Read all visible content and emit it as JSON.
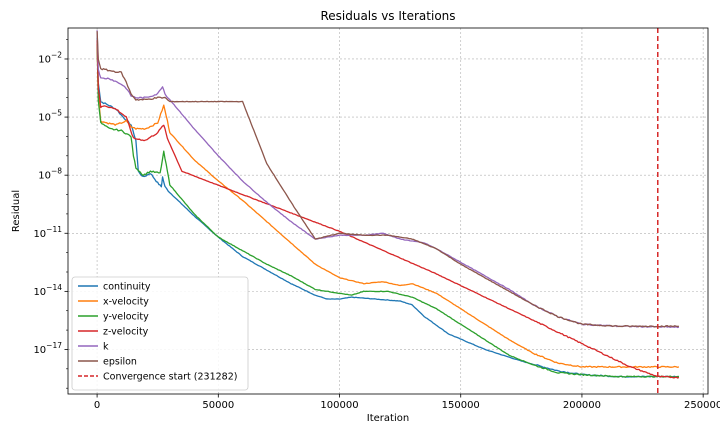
{
  "chart_data": {
    "type": "line",
    "title": "Residuals vs Iterations",
    "xlabel": "Iteration",
    "ylabel": "Residual",
    "yscale": "log",
    "xlim": [
      -12000,
      252000
    ],
    "ylim_log10": [
      -19.3,
      -0.4
    ],
    "x_ticks": [
      0,
      50000,
      100000,
      150000,
      200000,
      250000
    ],
    "x_tick_labels": [
      "0",
      "50000",
      "100000",
      "150000",
      "200000",
      "250000"
    ],
    "y_ticks_log10": [
      -17,
      -14,
      -11,
      -8,
      -5,
      -2
    ],
    "y_tick_labels": [
      {
        "base": "10",
        "exp": "−17"
      },
      {
        "base": "10",
        "exp": "−14"
      },
      {
        "base": "10",
        "exp": "−11"
      },
      {
        "base": "10",
        "exp": "−8"
      },
      {
        "base": "10",
        "exp": "−5"
      },
      {
        "base": "10",
        "exp": "−2"
      }
    ],
    "grid": true,
    "legend_position": "bottom-left",
    "series": [
      {
        "name": "continuity",
        "color": "#1f77b4",
        "log10_points": [
          [
            0,
            -0.9
          ],
          [
            500,
            -3.2
          ],
          [
            1500,
            -4.2
          ],
          [
            5000,
            -4.4
          ],
          [
            8000,
            -4.6
          ],
          [
            10000,
            -4.9
          ],
          [
            14000,
            -5.4
          ],
          [
            16000,
            -6.2
          ],
          [
            17000,
            -7.8
          ],
          [
            19000,
            -8.1
          ],
          [
            22000,
            -7.9
          ],
          [
            25000,
            -8.4
          ],
          [
            26500,
            -8.6
          ],
          [
            27000,
            -8.1
          ],
          [
            28000,
            -8.6
          ],
          [
            30000,
            -8.9
          ],
          [
            40000,
            -10.1
          ],
          [
            50000,
            -11.2
          ],
          [
            60000,
            -12.2
          ],
          [
            70000,
            -12.9
          ],
          [
            80000,
            -13.6
          ],
          [
            90000,
            -14.2
          ],
          [
            95000,
            -14.4
          ],
          [
            100000,
            -14.4
          ],
          [
            105000,
            -14.3
          ],
          [
            115000,
            -14.4
          ],
          [
            125000,
            -14.5
          ],
          [
            130000,
            -14.7
          ],
          [
            135000,
            -15.3
          ],
          [
            145000,
            -16.2
          ],
          [
            160000,
            -17.0
          ],
          [
            175000,
            -17.6
          ],
          [
            190000,
            -18.1
          ],
          [
            200000,
            -18.3
          ],
          [
            215000,
            -18.4
          ],
          [
            240000,
            -18.4
          ]
        ]
      },
      {
        "name": "x-velocity",
        "color": "#ff7f0e",
        "log10_points": [
          [
            0,
            -1.2
          ],
          [
            500,
            -3.9
          ],
          [
            1500,
            -5.2
          ],
          [
            4000,
            -5.3
          ],
          [
            8000,
            -5.4
          ],
          [
            10000,
            -5.3
          ],
          [
            12000,
            -5.2
          ],
          [
            14000,
            -5.5
          ],
          [
            16000,
            -5.6
          ],
          [
            20000,
            -5.6
          ],
          [
            25000,
            -5.3
          ],
          [
            27500,
            -4.4
          ],
          [
            29000,
            -5.2
          ],
          [
            30000,
            -5.8
          ],
          [
            40000,
            -7.2
          ],
          [
            50000,
            -8.3
          ],
          [
            60000,
            -9.3
          ],
          [
            70000,
            -10.4
          ],
          [
            80000,
            -11.5
          ],
          [
            90000,
            -12.6
          ],
          [
            100000,
            -13.3
          ],
          [
            110000,
            -13.6
          ],
          [
            118000,
            -13.5
          ],
          [
            125000,
            -13.7
          ],
          [
            130000,
            -13.6
          ],
          [
            140000,
            -14.1
          ],
          [
            150000,
            -14.9
          ],
          [
            160000,
            -15.7
          ],
          [
            170000,
            -16.5
          ],
          [
            180000,
            -17.2
          ],
          [
            190000,
            -17.7
          ],
          [
            200000,
            -17.9
          ],
          [
            215000,
            -17.9
          ],
          [
            240000,
            -17.9
          ]
        ]
      },
      {
        "name": "y-velocity",
        "color": "#2ca02c",
        "log10_points": [
          [
            0,
            -1.1
          ],
          [
            500,
            -4.1
          ],
          [
            1500,
            -5.3
          ],
          [
            5000,
            -5.6
          ],
          [
            10000,
            -5.7
          ],
          [
            14000,
            -6.0
          ],
          [
            15000,
            -7.0
          ],
          [
            16000,
            -7.6
          ],
          [
            19000,
            -8.0
          ],
          [
            22000,
            -7.8
          ],
          [
            26000,
            -7.9
          ],
          [
            27500,
            -6.8
          ],
          [
            29000,
            -7.8
          ],
          [
            30000,
            -8.5
          ],
          [
            40000,
            -10.0
          ],
          [
            50000,
            -11.2
          ],
          [
            60000,
            -11.9
          ],
          [
            70000,
            -12.6
          ],
          [
            80000,
            -13.2
          ],
          [
            90000,
            -13.9
          ],
          [
            100000,
            -14.1
          ],
          [
            105000,
            -14.2
          ],
          [
            110000,
            -14.0
          ],
          [
            120000,
            -14.0
          ],
          [
            130000,
            -14.3
          ],
          [
            140000,
            -14.9
          ],
          [
            150000,
            -15.7
          ],
          [
            160000,
            -16.5
          ],
          [
            170000,
            -17.3
          ],
          [
            180000,
            -17.8
          ],
          [
            190000,
            -18.2
          ],
          [
            200000,
            -18.3
          ],
          [
            215000,
            -18.4
          ],
          [
            240000,
            -18.4
          ]
        ]
      },
      {
        "name": "z-velocity",
        "color": "#d62728",
        "log10_points": [
          [
            0,
            -1.0
          ],
          [
            500,
            -3.5
          ],
          [
            1500,
            -4.5
          ],
          [
            3000,
            -4.4
          ],
          [
            8000,
            -4.6
          ],
          [
            12000,
            -5.0
          ],
          [
            15000,
            -6.1
          ],
          [
            20000,
            -6.2
          ],
          [
            25000,
            -5.8
          ],
          [
            27500,
            -5.4
          ],
          [
            29000,
            -6.1
          ],
          [
            35000,
            -7.8
          ],
          [
            60000,
            -9.0
          ],
          [
            100000,
            -10.9
          ],
          [
            140000,
            -13.1
          ],
          [
            180000,
            -15.5
          ],
          [
            220000,
            -17.9
          ],
          [
            231282,
            -18.4
          ],
          [
            240000,
            -18.45
          ]
        ]
      },
      {
        "name": "k",
        "color": "#9467bd",
        "log10_points": [
          [
            0,
            -0.5
          ],
          [
            500,
            -2.5
          ],
          [
            1500,
            -3.0
          ],
          [
            5000,
            -3.0
          ],
          [
            10000,
            -3.3
          ],
          [
            12000,
            -3.5
          ],
          [
            14000,
            -3.9
          ],
          [
            16000,
            -4.0
          ],
          [
            20000,
            -4.0
          ],
          [
            25000,
            -3.8
          ],
          [
            27000,
            -3.4
          ],
          [
            28000,
            -3.8
          ],
          [
            30000,
            -4.1
          ],
          [
            40000,
            -5.6
          ],
          [
            50000,
            -7.0
          ],
          [
            60000,
            -8.3
          ],
          [
            70000,
            -9.4
          ],
          [
            80000,
            -10.4
          ],
          [
            90000,
            -11.3
          ],
          [
            100000,
            -11.1
          ],
          [
            110000,
            -11.1
          ],
          [
            118000,
            -11.0
          ],
          [
            125000,
            -11.3
          ],
          [
            135000,
            -11.5
          ],
          [
            140000,
            -11.8
          ],
          [
            150000,
            -12.5
          ],
          [
            160000,
            -13.2
          ],
          [
            170000,
            -13.9
          ],
          [
            180000,
            -14.7
          ],
          [
            190000,
            -15.3
          ],
          [
            200000,
            -15.7
          ],
          [
            215000,
            -15.8
          ],
          [
            240000,
            -15.85
          ]
        ]
      },
      {
        "name": "epsilon",
        "color": "#8c564b",
        "log10_points": [
          [
            0,
            -0.6
          ],
          [
            500,
            -2.0
          ],
          [
            1500,
            -2.5
          ],
          [
            5000,
            -2.6
          ],
          [
            10000,
            -2.7
          ],
          [
            12000,
            -3.2
          ],
          [
            14000,
            -3.8
          ],
          [
            16000,
            -4.1
          ],
          [
            20000,
            -4.1
          ],
          [
            25000,
            -4.0
          ],
          [
            28000,
            -4.0
          ],
          [
            30000,
            -4.2
          ],
          [
            40000,
            -4.2
          ],
          [
            60000,
            -4.2
          ],
          [
            70000,
            -7.4
          ],
          [
            80000,
            -9.4
          ],
          [
            90000,
            -11.3
          ],
          [
            100000,
            -11.0
          ],
          [
            110000,
            -11.1
          ],
          [
            120000,
            -11.1
          ],
          [
            130000,
            -11.3
          ],
          [
            140000,
            -11.8
          ],
          [
            150000,
            -12.6
          ],
          [
            160000,
            -13.3
          ],
          [
            170000,
            -14.0
          ],
          [
            180000,
            -14.7
          ],
          [
            190000,
            -15.3
          ],
          [
            200000,
            -15.7
          ],
          [
            215000,
            -15.8
          ],
          [
            240000,
            -15.8
          ]
        ]
      }
    ],
    "vline": {
      "x": 231282,
      "label": "Convergence start (231282)",
      "color": "#d62728"
    }
  }
}
